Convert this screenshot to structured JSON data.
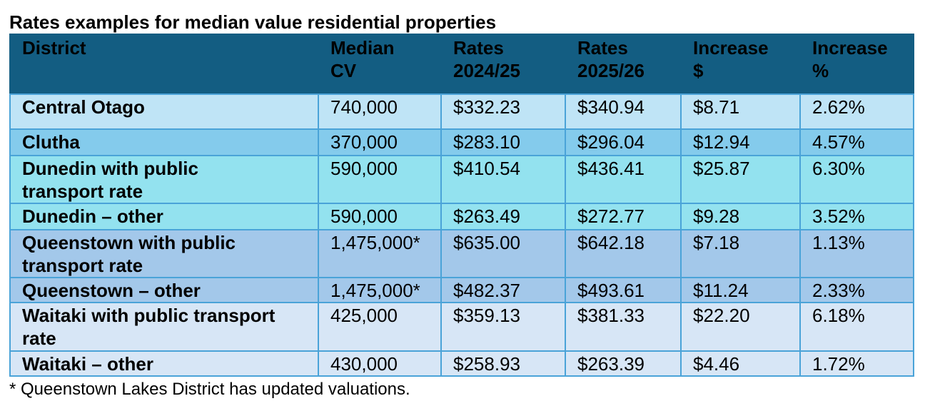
{
  "title": "Rates examples for median value residential properties",
  "table": {
    "headers": [
      [
        "District",
        ""
      ],
      [
        "Median",
        "CV"
      ],
      [
        "Rates",
        "2024/25"
      ],
      [
        "Rates",
        "2025/26"
      ],
      [
        "Increase",
        "$"
      ],
      [
        "Increase",
        "%"
      ]
    ],
    "rows": [
      {
        "district": [
          "Central Otago"
        ],
        "median_cv": "740,000",
        "rates_2024": "$332.23",
        "rates_2025": "$340.94",
        "increase_dollar": "$8.71",
        "increase_pct": "2.62%",
        "bg": "#bfe4f6"
      },
      {
        "district": [
          "Clutha"
        ],
        "median_cv": "370,000",
        "rates_2024": "$283.10",
        "rates_2025": "$296.04",
        "increase_dollar": "$12.94",
        "increase_pct": "4.57%",
        "bg": "#84cbec"
      },
      {
        "district": [
          "Dunedin with public",
          "transport rate"
        ],
        "median_cv": "590,000",
        "rates_2024": "$410.54",
        "rates_2025": "$436.41",
        "increase_dollar": "$25.87",
        "increase_pct": "6.30%",
        "bg": "#93e2ef"
      },
      {
        "district": [
          "Dunedin – other"
        ],
        "median_cv": "590,000",
        "rates_2024": "$263.49",
        "rates_2025": "$272.77",
        "increase_dollar": "$9.28",
        "increase_pct": "3.52%",
        "bg": "#93e2ef"
      },
      {
        "district": [
          "Queenstown with public",
          "transport rate"
        ],
        "median_cv": "1,475,000*",
        "rates_2024": "$635.00",
        "rates_2025": "$642.18",
        "increase_dollar": "$7.18",
        "increase_pct": "1.13%",
        "bg": "#a3c8ea"
      },
      {
        "district": [
          "Queenstown – other"
        ],
        "median_cv": "1,475,000*",
        "rates_2024": "$482.37",
        "rates_2025": "$493.61",
        "increase_dollar": "$11.24",
        "increase_pct": "2.33%",
        "bg": "#a3c8ea"
      },
      {
        "district": [
          "Waitaki with public transport",
          "rate"
        ],
        "median_cv": "425,000",
        "rates_2024": "$359.13",
        "rates_2025": "$381.33",
        "increase_dollar": "$22.20",
        "increase_pct": "6.18%",
        "bg": "#d7e6f6"
      },
      {
        "district": [
          "Waitaki – other"
        ],
        "median_cv": "430,000",
        "rates_2024": "$258.93",
        "rates_2025": "$263.39",
        "increase_dollar": "$4.46",
        "increase_pct": "1.72%",
        "bg": "#d7e6f6"
      }
    ]
  },
  "footnote": "* Queenstown Lakes District has updated valuations."
}
